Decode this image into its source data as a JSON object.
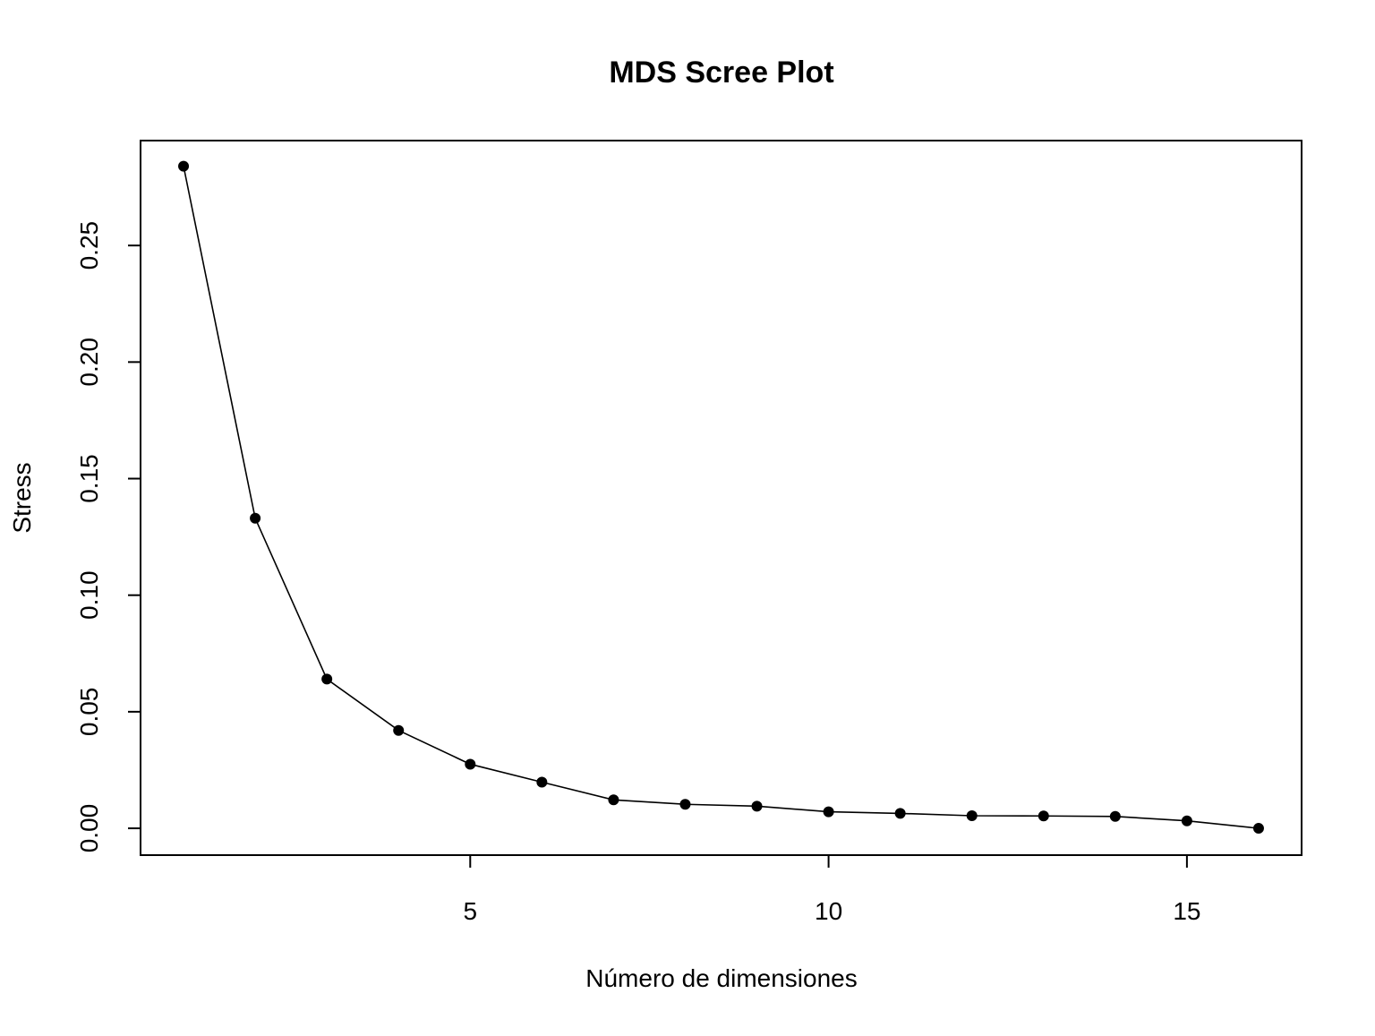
{
  "chart_data": {
    "type": "line",
    "title": "MDS Scree Plot",
    "xlabel": "Número de dimensiones",
    "ylabel": "Stress",
    "xlim": [
      0.4,
      16.6
    ],
    "ylim": [
      -0.0115,
      0.295
    ],
    "x_ticks": [
      5,
      10,
      15
    ],
    "x_tick_labels": [
      "5",
      "10",
      "15"
    ],
    "y_ticks": [
      0.0,
      0.05,
      0.1,
      0.15,
      0.2,
      0.25
    ],
    "y_tick_labels": [
      "0.00",
      "0.05",
      "0.10",
      "0.15",
      "0.20",
      "0.25"
    ],
    "grid": false,
    "legend": "none",
    "series": [
      {
        "x": [
          1,
          2,
          3,
          4,
          5,
          6,
          7,
          8,
          9,
          10,
          11,
          12,
          13,
          14,
          15,
          16
        ],
        "values": [
          0.284,
          0.133,
          0.064,
          0.042,
          0.0275,
          0.0198,
          0.0122,
          0.0103,
          0.0095,
          0.0071,
          0.0064,
          0.0054,
          0.0053,
          0.0051,
          0.0032,
          0.0
        ]
      }
    ],
    "line_color": "#000000",
    "marker_color": "#000000"
  }
}
